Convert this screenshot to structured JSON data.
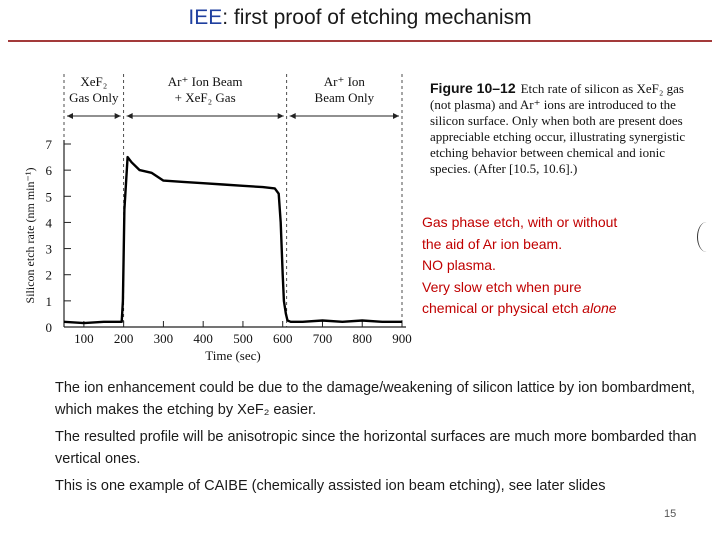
{
  "slide": {
    "title_prefix": "IEE",
    "title_rest": ": first proof of etching mechanism",
    "page_number": "15",
    "accent_color": "#1f3f9f",
    "rule_color": "#a33a3a",
    "note_color": "#c00000"
  },
  "chart_data": {
    "type": "line",
    "ylabel": "Silicon etch rate (nm min⁻¹)",
    "xlabel": "Time (sec)",
    "xlim": [
      50,
      900
    ],
    "ylim": [
      0,
      7
    ],
    "x_ticks": [
      100,
      200,
      300,
      400,
      500,
      600,
      700,
      800,
      900
    ],
    "y_ticks": [
      0,
      1,
      2,
      3,
      4,
      5,
      6,
      7
    ],
    "grid": false,
    "regions": [
      {
        "label_line1": "XeF₂",
        "label_line2": "Gas Only",
        "from": 50,
        "to": 200
      },
      {
        "label_line1": "Ar⁺ Ion Beam",
        "label_line2": "+ XeF₂ Gas",
        "from": 200,
        "to": 610
      },
      {
        "label_line1": "Ar⁺ Ion",
        "label_line2": "Beam Only",
        "from": 610,
        "to": 900
      }
    ],
    "series": [
      {
        "x": [
          50,
          100,
          150,
          195,
          198,
          202,
          210,
          220,
          240,
          270,
          300,
          350,
          400,
          450,
          500,
          550,
          580,
          590,
          595,
          600,
          603,
          608,
          612,
          620,
          650,
          700,
          750,
          800,
          850,
          900
        ],
        "y": [
          0.2,
          0.15,
          0.2,
          0.2,
          1.0,
          4.5,
          6.5,
          6.3,
          6.0,
          5.9,
          5.6,
          5.55,
          5.5,
          5.45,
          5.4,
          5.35,
          5.3,
          5.1,
          4.0,
          2.0,
          1.0,
          0.5,
          0.25,
          0.2,
          0.2,
          0.25,
          0.2,
          0.25,
          0.2,
          0.2
        ]
      }
    ]
  },
  "figure_caption": {
    "label": "Figure 10–12",
    "lines": [
      "Etch rate of silicon as XeF₂ gas",
      "(not plasma) and Ar⁺ ions are introduced to the",
      "silicon surface. Only when both are present does",
      "appreciable etching occur, illustrating synergistic",
      "etching behavior between chemical and ionic",
      "species. (After [10.5, 10.6].)"
    ]
  },
  "notes": {
    "line1": "Gas phase etch, with or without",
    "line2": "the aid of Ar ion beam.",
    "line3": "NO plasma.",
    "line4_prefix": "Very slow etch when pure",
    "line5_prefix": "chemical or physical etch ",
    "line5_emph": "alone"
  },
  "body": {
    "p1": "The ion enhancement could be due to the damage/weakening of silicon lattice by ion bombardment, which makes the etching by XeF₂ easier.",
    "p2": "The resulted profile will be anisotropic since the horizontal surfaces are much more bombarded than vertical ones.",
    "p3": "This is one example of CAIBE (chemically assisted ion beam etching), see later slides"
  }
}
